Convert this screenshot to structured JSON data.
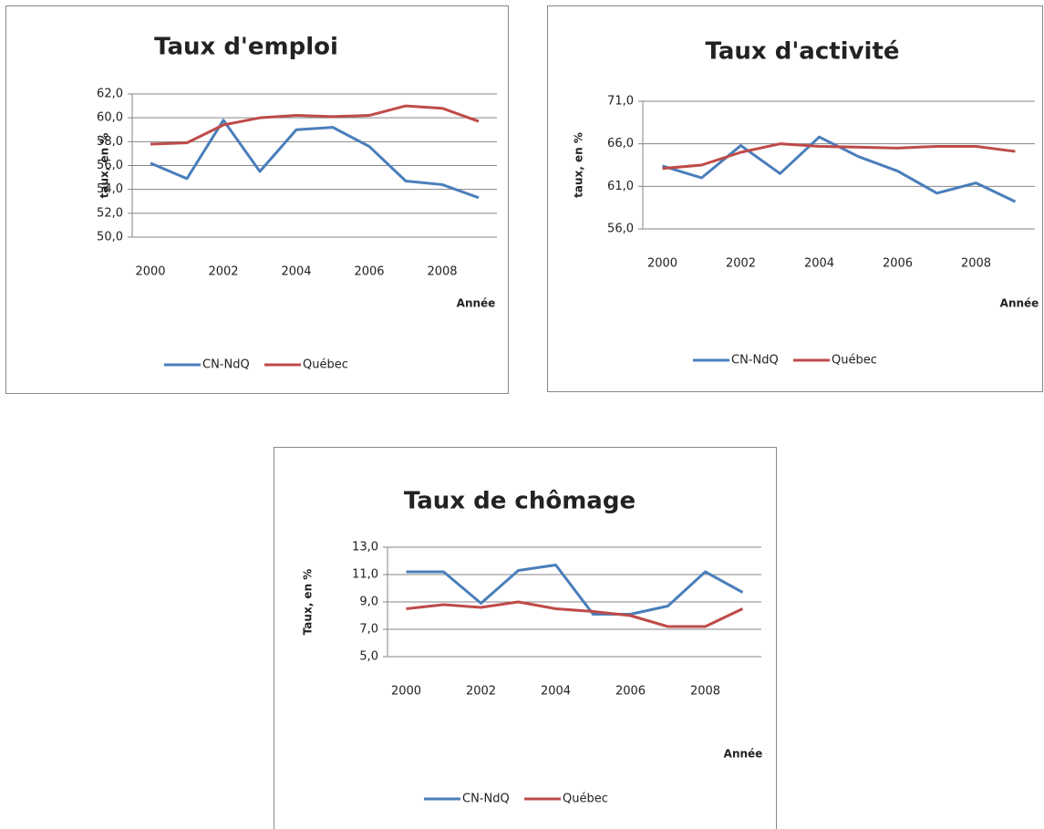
{
  "chart_data": [
    {
      "type": "line",
      "title": "Taux d'emploi",
      "y_label": "taux, en %",
      "x_label": "Année",
      "categories": [
        "2000",
        null,
        "2002",
        null,
        "2004",
        null,
        "2006",
        null,
        "2008",
        null
      ],
      "series": [
        {
          "name": "CN-NdQ",
          "color": "#4a7ebb",
          "values": [
            56.2,
            54.9,
            59.8,
            55.5,
            59.0,
            59.2,
            57.6,
            54.7,
            54.4,
            53.3
          ]
        },
        {
          "name": "Québec",
          "color": "#be4b48",
          "values": [
            57.8,
            57.9,
            59.4,
            60.0,
            60.2,
            60.1,
            60.2,
            61.0,
            60.8,
            59.7
          ]
        }
      ],
      "ylim": [
        50,
        62
      ],
      "yticks": [
        {
          "value": 50,
          "label": "50,0"
        },
        {
          "value": 52,
          "label": "52,0"
        },
        {
          "value": 54,
          "label": "54,0"
        },
        {
          "value": 56,
          "label": "56,0"
        },
        {
          "value": 58,
          "label": "58,0"
        },
        {
          "value": 60,
          "label": "60,0"
        },
        {
          "value": 62,
          "label": "62,0"
        }
      ],
      "grid": true
    },
    {
      "type": "line",
      "title": "Taux d'activité",
      "y_label": "taux, en %",
      "x_label": "Année",
      "categories": [
        "2000",
        null,
        "2002",
        null,
        "2004",
        null,
        "2006",
        null,
        "2008",
        null
      ],
      "series": [
        {
          "name": "CN-NdQ",
          "color": "#4a7ebb",
          "values": [
            63.4,
            62.0,
            65.8,
            62.5,
            66.8,
            64.5,
            62.8,
            60.2,
            61.4,
            59.2
          ]
        },
        {
          "name": "Québec",
          "color": "#be4b48",
          "values": [
            63.1,
            63.5,
            65.0,
            66.0,
            65.7,
            65.6,
            65.5,
            65.7,
            65.7,
            65.1
          ]
        }
      ],
      "ylim": [
        56,
        71
      ],
      "yticks": [
        {
          "value": 56,
          "label": "56,0"
        },
        {
          "value": 61,
          "label": "61,0"
        },
        {
          "value": 66,
          "label": "66,0"
        },
        {
          "value": 71,
          "label": "71,0"
        }
      ],
      "grid": true
    },
    {
      "type": "line",
      "title": "Taux de chômage",
      "y_label": "Taux, en %",
      "x_label": "Année",
      "categories": [
        "2000",
        null,
        "2002",
        null,
        "2004",
        null,
        "2006",
        null,
        "2008",
        null
      ],
      "series": [
        {
          "name": "CN-NdQ",
          "color": "#4a7ebb",
          "values": [
            11.2,
            11.2,
            8.9,
            11.3,
            11.7,
            8.1,
            8.1,
            8.7,
            11.2,
            9.7
          ]
        },
        {
          "name": "Québec",
          "color": "#be4b48",
          "values": [
            8.5,
            8.8,
            8.6,
            9.0,
            8.5,
            8.3,
            8.0,
            7.2,
            7.2,
            8.5
          ]
        }
      ],
      "ylim": [
        5,
        13
      ],
      "yticks": [
        {
          "value": 5,
          "label": "5,0"
        },
        {
          "value": 7,
          "label": "7,0"
        },
        {
          "value": 9,
          "label": "9,0"
        },
        {
          "value": 11,
          "label": "11,0"
        },
        {
          "value": 13,
          "label": "13,0"
        }
      ],
      "grid": true
    }
  ]
}
